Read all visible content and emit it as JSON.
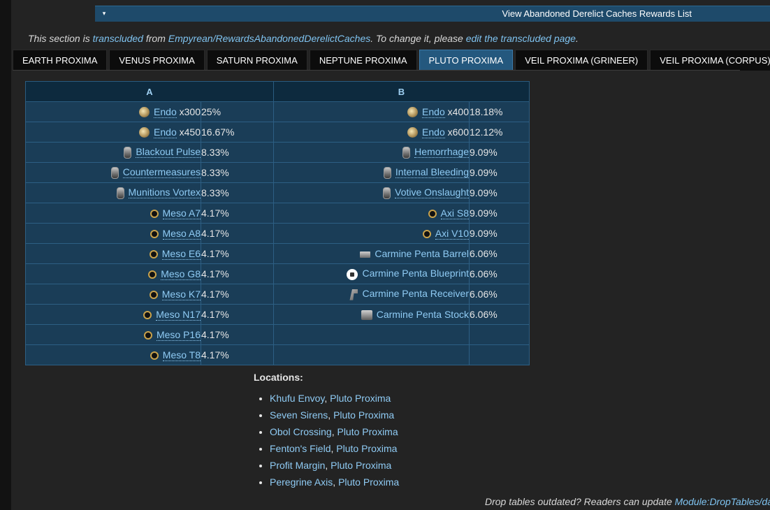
{
  "collapsible": {
    "toggle_icon": "▾",
    "title": "View Abandoned Derelict Caches Rewards List"
  },
  "transclusion": {
    "prefix": "This section is ",
    "transcluded_link": "transcluded",
    "from_text": " from ",
    "source_link": "Empyrean/RewardsAbandonedDerelictCaches",
    "mid_text": ". To change it, please ",
    "edit_link": "edit the transcluded page",
    "suffix": "."
  },
  "tabs": [
    {
      "label": "EARTH PROXIMA",
      "active": false
    },
    {
      "label": "VENUS PROXIMA",
      "active": false
    },
    {
      "label": "SATURN PROXIMA",
      "active": false
    },
    {
      "label": "NEPTUNE PROXIMA",
      "active": false
    },
    {
      "label": "PLUTO PROXIMA",
      "active": true
    },
    {
      "label": "VEIL PROXIMA (GRINEER)",
      "active": false
    },
    {
      "label": "VEIL PROXIMA (CORPUS)",
      "active": false
    }
  ],
  "rewards_table": {
    "headers": [
      "A",
      "B"
    ],
    "rotation_a": [
      {
        "icon": "endo-icon",
        "name": "Endo",
        "qty": " x300",
        "chance": "25%"
      },
      {
        "icon": "endo-icon",
        "name": "Endo",
        "qty": " x450",
        "chance": "16.67%"
      },
      {
        "icon": "mod-icon",
        "name": "Blackout Pulse",
        "qty": "",
        "chance": "8.33%"
      },
      {
        "icon": "mod-icon",
        "name": "Countermeasures",
        "qty": "",
        "chance": "8.33%"
      },
      {
        "icon": "mod-icon",
        "name": "Munitions Vortex",
        "qty": "",
        "chance": "8.33%"
      },
      {
        "icon": "relic-icon",
        "name": "Meso A7",
        "qty": "",
        "chance": "4.17%"
      },
      {
        "icon": "relic-icon",
        "name": "Meso A8",
        "qty": "",
        "chance": "4.17%"
      },
      {
        "icon": "relic-icon",
        "name": "Meso E6",
        "qty": "",
        "chance": "4.17%"
      },
      {
        "icon": "relic-icon",
        "name": "Meso G8",
        "qty": "",
        "chance": "4.17%"
      },
      {
        "icon": "relic-icon",
        "name": "Meso K7",
        "qty": "",
        "chance": "4.17%"
      },
      {
        "icon": "relic-icon",
        "name": "Meso N17",
        "qty": "",
        "chance": "4.17%"
      },
      {
        "icon": "relic-icon",
        "name": "Meso P16",
        "qty": "",
        "chance": "4.17%"
      },
      {
        "icon": "relic-icon",
        "name": "Meso T8",
        "qty": "",
        "chance": "4.17%"
      }
    ],
    "rotation_b": [
      {
        "icon": "endo-icon",
        "name": "Endo",
        "qty": " x400",
        "chance": "18.18%",
        "dotted": true
      },
      {
        "icon": "endo-icon",
        "name": "Endo",
        "qty": " x600",
        "chance": "12.12%",
        "dotted": true
      },
      {
        "icon": "mod-icon",
        "name": "Hemorrhage",
        "qty": "",
        "chance": "9.09%",
        "dotted": true
      },
      {
        "icon": "mod-icon",
        "name": "Internal Bleeding",
        "qty": "",
        "chance": "9.09%",
        "dotted": true
      },
      {
        "icon": "mod-icon",
        "name": "Votive Onslaught",
        "qty": "",
        "chance": "9.09%",
        "dotted": true
      },
      {
        "icon": "relic-icon",
        "name": "Axi S8",
        "qty": "",
        "chance": "9.09%",
        "dotted": true
      },
      {
        "icon": "relic-icon",
        "name": "Axi V10",
        "qty": "",
        "chance": "9.09%",
        "dotted": true
      },
      {
        "icon": "barrel-icon",
        "name": "Carmine Penta Barrel",
        "qty": "",
        "chance": "6.06%",
        "dotted": false
      },
      {
        "icon": "blueprint-icon",
        "name": "Carmine Penta Blueprint",
        "qty": "",
        "chance": "6.06%",
        "dotted": false
      },
      {
        "icon": "receiver-icon",
        "name": "Carmine Penta Receiver",
        "qty": "",
        "chance": "6.06%",
        "dotted": false
      },
      {
        "icon": "stock-icon",
        "name": "Carmine Penta Stock",
        "qty": "",
        "chance": "6.06%",
        "dotted": false
      },
      null,
      null
    ]
  },
  "locations": {
    "title": "Locations:",
    "items": [
      {
        "node": "Khufu Envoy",
        "sep": ", ",
        "region": "Pluto Proxima"
      },
      {
        "node": "Seven Sirens",
        "sep": ", ",
        "region": "Pluto Proxima"
      },
      {
        "node": "Obol Crossing",
        "sep": ", ",
        "region": "Pluto Proxima"
      },
      {
        "node": "Fenton's Field",
        "sep": ", ",
        "region": "Pluto Proxima"
      },
      {
        "node": "Profit Margin",
        "sep": ", ",
        "region": "Pluto Proxima"
      },
      {
        "node": "Peregrine Axis",
        "sep": ", ",
        "region": "Pluto Proxima"
      }
    ]
  },
  "footer": {
    "text": "Drop tables outdated? Readers can update ",
    "link": "Module:DropTables/da"
  },
  "colors": {
    "accent": "#24587e",
    "link": "#8fcbf4",
    "table_bg": "#1a3d57",
    "header_bg": "#0d2a3e"
  }
}
